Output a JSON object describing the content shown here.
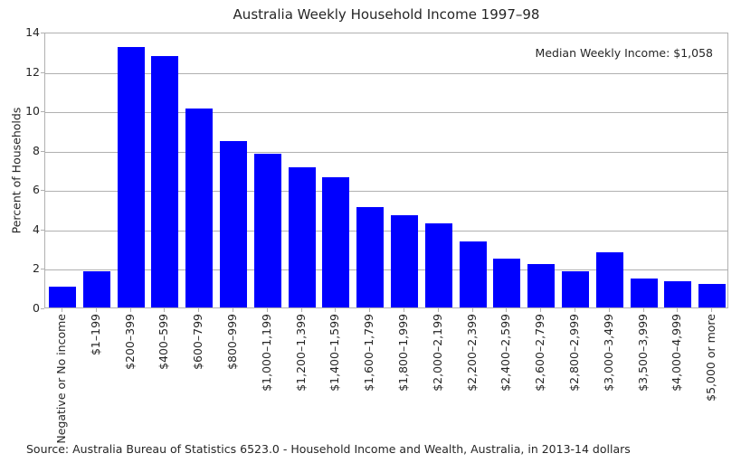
{
  "colors": {
    "bar": "#0000ff",
    "grid": "#b0b0b0",
    "spine": "#b0b0b0",
    "text": "#262626",
    "background": "#ffffff"
  },
  "chart_data": {
    "type": "bar",
    "title": "Australia Weekly Household Income 1997–98",
    "xlabel": "",
    "ylabel": "Percent of Households",
    "ylim": [
      0,
      14
    ],
    "yticks": [
      0,
      2,
      4,
      6,
      8,
      10,
      12,
      14
    ],
    "grid": true,
    "grid_axis": "y",
    "legend_position": "none",
    "annotation": "Median Weekly Income: $1,058",
    "source": "Source: Australia Bureau of Statistics 6523.0 - Household Income and Wealth, Australia, in 2013-14 dollars",
    "categories": [
      "Negative or No income",
      "$1–199",
      "$200–399",
      "$400–599",
      "$600–799",
      "$800–999",
      "$1,000–1,199",
      "$1,200–1,399",
      "$1,400–1,599",
      "$1,600–1,799",
      "$1,800–1,999",
      "$2,000–2,199",
      "$2,200–2,399",
      "$2,400–2,599",
      "$2,600–2,799",
      "$2,800–2,999",
      "$3,000–3,499",
      "$3,500–3,999",
      "$4,000–4,999",
      "$5,000 or more"
    ],
    "values": [
      1.05,
      1.85,
      13.2,
      12.75,
      10.1,
      8.45,
      7.8,
      7.1,
      6.6,
      5.1,
      4.7,
      4.25,
      3.35,
      2.5,
      2.2,
      1.85,
      2.8,
      1.45,
      1.35,
      1.2
    ]
  }
}
